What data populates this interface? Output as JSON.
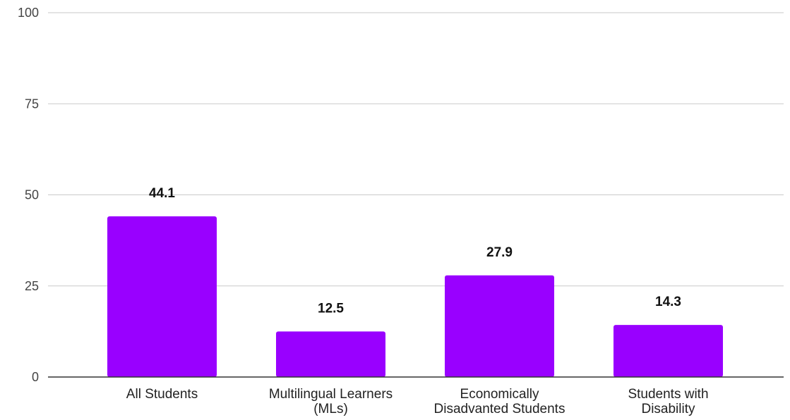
{
  "chart_data": {
    "type": "bar",
    "title": "",
    "xlabel": "",
    "ylabel": "",
    "ylim": [
      0,
      100
    ],
    "yticks": [
      0,
      25,
      50,
      75,
      100
    ],
    "grid": true,
    "bar_color": "#9900FF",
    "categories": [
      [
        "All Students"
      ],
      [
        "Multilingual Learners",
        "(MLs)"
      ],
      [
        "Economically",
        "Disadvanted Students"
      ],
      [
        "Students with",
        "Disability"
      ]
    ],
    "values": [
      44.1,
      12.5,
      27.9,
      14.3
    ],
    "data_labels": [
      "44.1",
      "12.5",
      "27.9",
      "14.3"
    ]
  }
}
